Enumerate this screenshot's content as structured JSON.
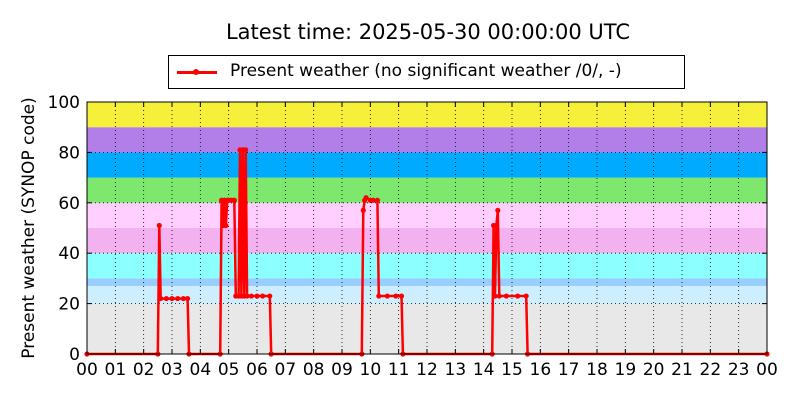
{
  "chart_data": {
    "type": "line",
    "title": "Latest time: 2025-05-30 00:00:00 UTC",
    "xlabel": "",
    "ylabel": "Present weather (SYNOP code)",
    "xlim": [
      0,
      24
    ],
    "ylim": [
      0,
      100
    ],
    "x_ticks": [
      "00",
      "01",
      "02",
      "03",
      "04",
      "05",
      "06",
      "07",
      "08",
      "09",
      "10",
      "11",
      "12",
      "13",
      "14",
      "15",
      "16",
      "17",
      "18",
      "19",
      "20",
      "21",
      "22",
      "23",
      "00"
    ],
    "y_ticks": [
      0,
      20,
      40,
      60,
      80,
      100
    ],
    "grid": true,
    "legend_position": "top-center",
    "background_bands": [
      {
        "from": 0,
        "to": 20,
        "color": "#e8e8e8"
      },
      {
        "from": 20,
        "to": 27,
        "color": "#cdeeff"
      },
      {
        "from": 27,
        "to": 30,
        "color": "#99ccff"
      },
      {
        "from": 30,
        "to": 40,
        "color": "#8cffff"
      },
      {
        "from": 40,
        "to": 50,
        "color": "#f3b1f0"
      },
      {
        "from": 50,
        "to": 60,
        "color": "#ffcfff"
      },
      {
        "from": 60,
        "to": 70,
        "color": "#7ee86e"
      },
      {
        "from": 70,
        "to": 80,
        "color": "#00aaff"
      },
      {
        "from": 80,
        "to": 90,
        "color": "#b27ee8"
      },
      {
        "from": 90,
        "to": 100,
        "color": "#f6f03a"
      }
    ],
    "series": [
      {
        "name": "Present weather (no significant weather /0/, -)",
        "color": "#ff0000",
        "points": [
          [
            0.0,
            0
          ],
          [
            2.5,
            0
          ],
          [
            2.55,
            51
          ],
          [
            2.6,
            22
          ],
          [
            2.8,
            22
          ],
          [
            3.0,
            22
          ],
          [
            3.2,
            22
          ],
          [
            3.4,
            22
          ],
          [
            3.55,
            22
          ],
          [
            3.6,
            0
          ],
          [
            4.7,
            0
          ],
          [
            4.75,
            61
          ],
          [
            4.8,
            51
          ],
          [
            4.85,
            61
          ],
          [
            4.9,
            51
          ],
          [
            4.95,
            61
          ],
          [
            5.0,
            61
          ],
          [
            5.1,
            61
          ],
          [
            5.2,
            61
          ],
          [
            5.25,
            23
          ],
          [
            5.35,
            23
          ],
          [
            5.4,
            81
          ],
          [
            5.45,
            23
          ],
          [
            5.5,
            81
          ],
          [
            5.55,
            23
          ],
          [
            5.6,
            81
          ],
          [
            5.65,
            23
          ],
          [
            5.8,
            23
          ],
          [
            6.0,
            23
          ],
          [
            6.2,
            23
          ],
          [
            6.45,
            23
          ],
          [
            6.5,
            0
          ],
          [
            9.7,
            0
          ],
          [
            9.75,
            57
          ],
          [
            9.8,
            61
          ],
          [
            9.85,
            62
          ],
          [
            10.0,
            61
          ],
          [
            10.1,
            61
          ],
          [
            10.25,
            61
          ],
          [
            10.3,
            23
          ],
          [
            10.6,
            23
          ],
          [
            10.9,
            23
          ],
          [
            11.1,
            23
          ],
          [
            11.15,
            0
          ],
          [
            14.3,
            0
          ],
          [
            14.35,
            51
          ],
          [
            14.4,
            23
          ],
          [
            14.45,
            51
          ],
          [
            14.5,
            57
          ],
          [
            14.55,
            23
          ],
          [
            14.8,
            23
          ],
          [
            15.2,
            23
          ],
          [
            15.5,
            23
          ],
          [
            15.55,
            0
          ],
          [
            24.0,
            0
          ]
        ]
      }
    ]
  }
}
